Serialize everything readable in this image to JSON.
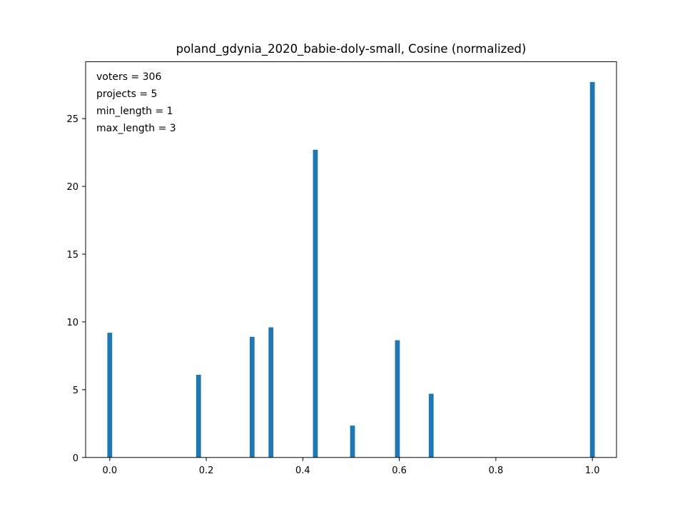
{
  "chart_data": {
    "type": "bar",
    "title": "poland_gdynia_2020_babie-doly-small, Cosine (normalized)",
    "xlabel": "",
    "ylabel": "",
    "xlim": [
      -0.05,
      1.05
    ],
    "ylim": [
      0,
      29.2
    ],
    "bar_width": 0.01,
    "bar_color": "#1f77b4",
    "x_ticks": [
      0.0,
      0.2,
      0.4,
      0.6,
      0.8,
      1.0
    ],
    "x_tick_labels": [
      "0.0",
      "0.2",
      "0.4",
      "0.6",
      "0.8",
      "1.0"
    ],
    "y_ticks": [
      0,
      5,
      10,
      15,
      20,
      25
    ],
    "y_tick_labels": [
      "0",
      "5",
      "10",
      "15",
      "20",
      "25"
    ],
    "grid": false,
    "x": [
      0.0,
      0.184,
      0.295,
      0.334,
      0.426,
      0.503,
      0.596,
      0.666,
      1.0
    ],
    "values": [
      9.2,
      6.1,
      8.9,
      9.6,
      22.7,
      2.35,
      8.65,
      4.7,
      27.7
    ],
    "annotation_lines": [
      "voters = 306",
      "projects = 5",
      "min_length = 1",
      "max_length = 3"
    ]
  }
}
